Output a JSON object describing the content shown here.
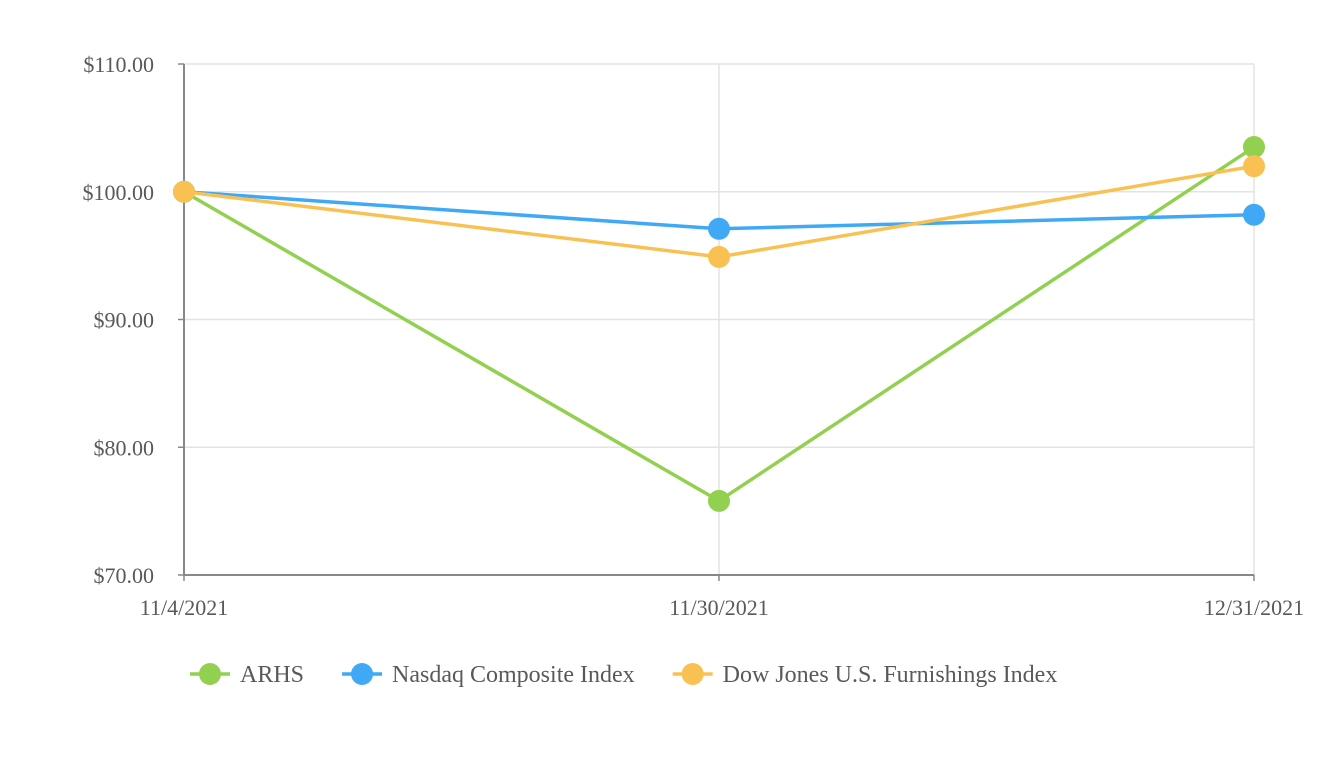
{
  "chart_data": {
    "type": "line",
    "title": "",
    "xlabel": "",
    "ylabel": "",
    "categories": [
      "11/4/2021",
      "11/30/2021",
      "12/31/2021"
    ],
    "ylim": [
      70,
      110
    ],
    "yticks": [
      70,
      80,
      90,
      100,
      110
    ],
    "ytick_labels": [
      "$70.00",
      "$80.00",
      "$90.00",
      "$100.00",
      "$110.00"
    ],
    "grid": true,
    "legend_position": "bottom",
    "series": [
      {
        "name": "ARHS",
        "color": "#92d050",
        "values": [
          100.0,
          75.8,
          103.5
        ]
      },
      {
        "name": "Nasdaq Composite Index",
        "color": "#3fa9f5",
        "values": [
          100.0,
          97.1,
          98.2
        ]
      },
      {
        "name": "Dow Jones U.S. Furnishings Index",
        "color": "#f9c152",
        "values": [
          100.0,
          94.9,
          102.0
        ]
      }
    ]
  }
}
